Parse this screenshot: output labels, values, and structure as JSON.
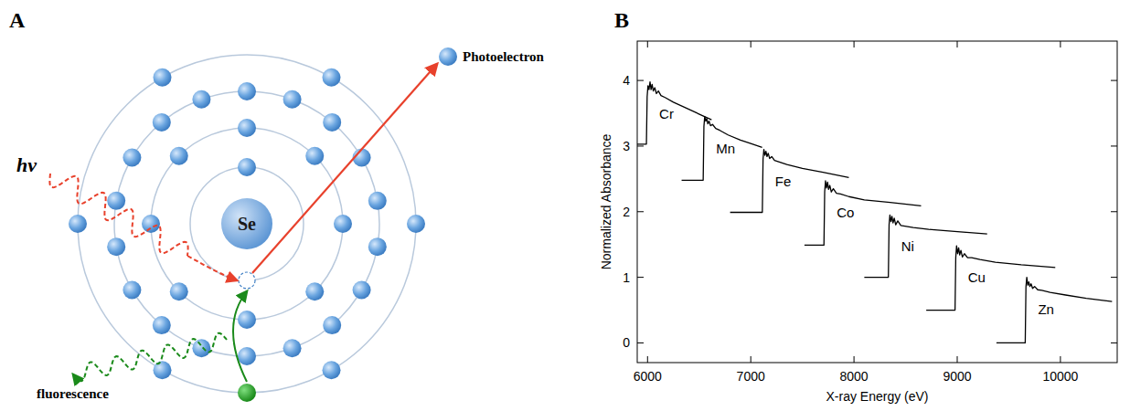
{
  "diagram": {
    "panel": "A",
    "nucleus": "Se",
    "photon": "hv",
    "photoelectron": "Photoelectron",
    "fluorescence": "fluorescence"
  },
  "chart_data": {
    "panel": "B",
    "type": "line",
    "xlabel": "X-ray Energy (eV)",
    "ylabel": "Normalized Absorbance",
    "xlim": [
      5900,
      10550
    ],
    "ylim": [
      -0.3,
      4.6
    ],
    "xticks": [
      6000,
      7000,
      8000,
      9000,
      10000
    ],
    "yticks": [
      0,
      1,
      2,
      3,
      4
    ],
    "grid": false,
    "series": [
      {
        "name": "Cr",
        "color": "#000000",
        "x": [
          5900,
          5989,
          5996,
          6004,
          6014,
          6024,
          6034,
          6044,
          6056,
          6070,
          6086,
          6105,
          6130,
          6170,
          6250,
          6400,
          6620
        ],
        "values": [
          3.03,
          3.03,
          3.75,
          3.92,
          3.86,
          3.98,
          3.86,
          3.94,
          3.84,
          3.89,
          3.8,
          3.84,
          3.77,
          3.74,
          3.67,
          3.56,
          3.4
        ]
      },
      {
        "name": "Mn",
        "color": "#000000",
        "x": [
          6330,
          6539,
          6546,
          6554,
          6564,
          6574,
          6584,
          6596,
          6610,
          6630,
          6660,
          6700,
          6780,
          6900,
          7000,
          7110
        ],
        "values": [
          2.48,
          2.48,
          3.3,
          3.45,
          3.38,
          3.42,
          3.34,
          3.38,
          3.31,
          3.33,
          3.27,
          3.24,
          3.17,
          3.09,
          3.04,
          2.98
        ]
      },
      {
        "name": "Fe",
        "color": "#000000",
        "x": [
          6800,
          7112,
          7119,
          7127,
          7137,
          7147,
          7157,
          7169,
          7183,
          7203,
          7230,
          7270,
          7350,
          7500,
          7700,
          7950
        ],
        "values": [
          1.99,
          1.99,
          2.8,
          2.95,
          2.86,
          2.92,
          2.84,
          2.89,
          2.81,
          2.84,
          2.78,
          2.76,
          2.72,
          2.66,
          2.6,
          2.52
        ]
      },
      {
        "name": "Co",
        "color": "#000000",
        "x": [
          7520,
          7709,
          7716,
          7724,
          7734,
          7744,
          7754,
          7766,
          7780,
          7800,
          7830,
          7870,
          7950,
          8100,
          8350,
          8650
        ],
        "values": [
          1.49,
          1.49,
          2.3,
          2.47,
          2.36,
          2.45,
          2.34,
          2.4,
          2.3,
          2.35,
          2.28,
          2.27,
          2.23,
          2.18,
          2.14,
          2.09
        ]
      },
      {
        "name": "Ni",
        "color": "#000000",
        "x": [
          8100,
          8333,
          8340,
          8348,
          8358,
          8368,
          8378,
          8390,
          8404,
          8424,
          8454,
          8494,
          8574,
          8724,
          8974,
          9290
        ],
        "values": [
          1.0,
          1.0,
          1.8,
          1.95,
          1.85,
          1.93,
          1.83,
          1.9,
          1.8,
          1.86,
          1.79,
          1.78,
          1.76,
          1.73,
          1.7,
          1.66
        ]
      },
      {
        "name": "Cu",
        "color": "#000000",
        "x": [
          8700,
          8979,
          8986,
          8994,
          9004,
          9014,
          9024,
          9036,
          9050,
          9070,
          9100,
          9140,
          9220,
          9370,
          9620,
          9950
        ],
        "values": [
          0.5,
          0.5,
          1.3,
          1.48,
          1.36,
          1.45,
          1.34,
          1.41,
          1.31,
          1.36,
          1.3,
          1.3,
          1.27,
          1.23,
          1.19,
          1.15
        ]
      },
      {
        "name": "Zn",
        "color": "#000000",
        "x": [
          9380,
          9659,
          9666,
          9674,
          9684,
          9694,
          9704,
          9716,
          9730,
          9750,
          9780,
          9820,
          9900,
          10050,
          10250,
          10500
        ],
        "values": [
          0,
          0,
          0.85,
          1.0,
          0.88,
          0.93,
          0.86,
          0.9,
          0.83,
          0.86,
          0.81,
          0.8,
          0.77,
          0.73,
          0.68,
          0.63
        ]
      }
    ]
  }
}
